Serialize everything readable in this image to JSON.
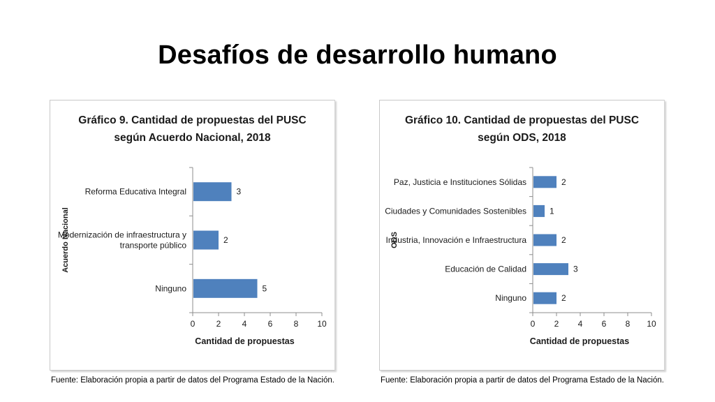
{
  "slide": {
    "title": "Desafíos de desarrollo humano"
  },
  "chart_data": [
    {
      "type": "bar",
      "orientation": "horizontal",
      "title_line1": "Gráfico 9. Cantidad de propuestas del PUSC",
      "title_line2": "según Acuerdo Nacional, 2018",
      "xlabel": "Cantidad de propuestas",
      "ylabel": "Acuerdo Nacional",
      "categories": [
        [
          "Reforma Educativa Integral"
        ],
        [
          "Modernización de infraestructura y",
          "transporte público"
        ],
        [
          "Ninguno"
        ]
      ],
      "values": [
        3,
        2,
        5
      ],
      "xlim": [
        0,
        10
      ],
      "xticks": [
        0,
        2,
        4,
        6,
        8,
        10
      ],
      "bar_color": "#4f81bd",
      "data_labels": true,
      "source": "Fuente: Elaboración propia a partir de datos del Programa Estado de la Nación."
    },
    {
      "type": "bar",
      "orientation": "horizontal",
      "title_line1": "Gráfico 10. Cantidad de propuestas del PUSC",
      "title_line2": "según ODS, 2018",
      "xlabel": "Cantidad de propuestas",
      "ylabel": "ODS",
      "categories": [
        [
          "Paz, Justicia e Instituciones Sólidas"
        ],
        [
          "Ciudades y Comunidades Sostenibles"
        ],
        [
          "Industria, Innovación e Infraestructura"
        ],
        [
          "Educación de Calidad"
        ],
        [
          "Ninguno"
        ]
      ],
      "values": [
        2,
        1,
        2,
        3,
        2
      ],
      "xlim": [
        0,
        10
      ],
      "xticks": [
        0,
        2,
        4,
        6,
        8,
        10
      ],
      "bar_color": "#4f81bd",
      "data_labels": true,
      "source": "Fuente: Elaboración propia a partir de datos del Programa Estado de la Nación."
    }
  ]
}
